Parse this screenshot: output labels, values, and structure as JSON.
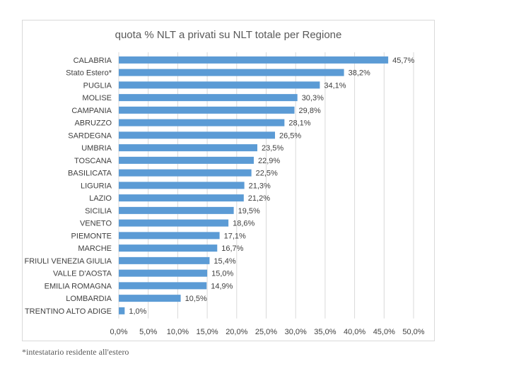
{
  "chart_data": {
    "type": "bar",
    "orientation": "horizontal",
    "title": "quota % NLT a privati su NLT totale per Regione",
    "categories": [
      "CALABRIA",
      "Stato Estero*",
      "PUGLIA",
      "MOLISE",
      "CAMPANIA",
      "ABRUZZO",
      "SARDEGNA",
      "UMBRIA",
      "TOSCANA",
      "BASILICATA",
      "LIGURIA",
      "LAZIO",
      "SICILIA",
      "VENETO",
      "PIEMONTE",
      "MARCHE",
      "FRIULI VENEZIA GIULIA",
      "VALLE D'AOSTA",
      "EMILIA ROMAGNA",
      "LOMBARDIA",
      "TRENTINO ALTO ADIGE"
    ],
    "values": [
      45.7,
      38.2,
      34.1,
      30.3,
      29.8,
      28.1,
      26.5,
      23.5,
      22.9,
      22.5,
      21.3,
      21.2,
      19.5,
      18.6,
      17.1,
      16.7,
      15.4,
      15.0,
      14.9,
      10.5,
      1.0
    ],
    "data_labels": [
      "45,7%",
      "38,2%",
      "34,1%",
      "30,3%",
      "29,8%",
      "28,1%",
      "26,5%",
      "23,5%",
      "22,9%",
      "22,5%",
      "21,3%",
      "21,2%",
      "19,5%",
      "18,6%",
      "17,1%",
      "16,7%",
      "15,4%",
      "15,0%",
      "14,9%",
      "10,5%",
      "1,0%"
    ],
    "xlim": [
      0,
      50
    ],
    "x_ticks": [
      0,
      5,
      10,
      15,
      20,
      25,
      30,
      35,
      40,
      45,
      50
    ],
    "x_tick_labels": [
      "0,0%",
      "5,0%",
      "10,0%",
      "15,0%",
      "20,0%",
      "25,0%",
      "30,0%",
      "35,0%",
      "40,0%",
      "45,0%",
      "50,0%"
    ],
    "grid": true,
    "legend": "none",
    "bar_color": "#5b9bd5",
    "grid_color": "#d9d9d9"
  },
  "footnote": "*intestatario residente all'estero"
}
